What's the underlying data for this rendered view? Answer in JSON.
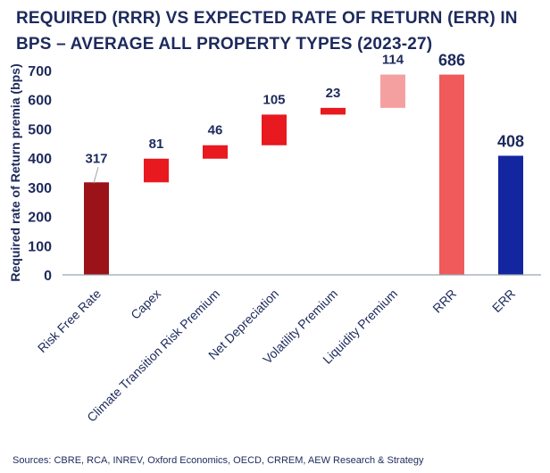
{
  "chart_data": {
    "type": "waterfall",
    "title": "REQUIRED (RRR) VS EXPECTED RATE OF RETURN (ERR) IN BPS – AVERAGE ALL PROPERTY TYPES (2023-27)",
    "ylabel": "Required rate of Return premia (bps)",
    "xlabel": "",
    "ylim": [
      0,
      700
    ],
    "yticks": [
      0,
      100,
      200,
      300,
      400,
      500,
      600,
      700
    ],
    "grid": false,
    "legend": "none",
    "categories": [
      "Risk Free Rate",
      "Capex",
      "Climate Transition Risk Premium",
      "Net Depreciation",
      "Volatility Premium",
      "Liquidity Premium",
      "RRR",
      "ERR"
    ],
    "bars": [
      {
        "label": "Risk Free Rate",
        "value": 317,
        "start": 0,
        "end": 317,
        "color": "#9b1218",
        "kind": "total"
      },
      {
        "label": "Capex",
        "value": 81,
        "start": 317,
        "end": 398,
        "color": "#e8191f",
        "kind": "increment"
      },
      {
        "label": "Climate Transition Risk Premium",
        "value": 46,
        "start": 398,
        "end": 444,
        "color": "#e8191f",
        "kind": "increment"
      },
      {
        "label": "Net Depreciation",
        "value": 105,
        "start": 444,
        "end": 549,
        "color": "#e8191f",
        "kind": "increment"
      },
      {
        "label": "Volatility Premium",
        "value": 23,
        "start": 549,
        "end": 572,
        "color": "#e8191f",
        "kind": "increment"
      },
      {
        "label": "Liquidity Premium",
        "value": 114,
        "start": 572,
        "end": 686,
        "color": "#f5a0a0",
        "kind": "increment"
      },
      {
        "label": "RRR",
        "value": 686,
        "start": 0,
        "end": 686,
        "color": "#f05a5a",
        "kind": "total"
      },
      {
        "label": "ERR",
        "value": 408,
        "start": 0,
        "end": 408,
        "color": "#1326a0",
        "kind": "total"
      }
    ]
  },
  "source": "Sources: CBRE, RCA, INREV, Oxford Economics, OECD, CRREM, AEW Research & Strategy",
  "colors": {
    "text": "#1d2a5c",
    "axis": "#9aa3b0"
  }
}
